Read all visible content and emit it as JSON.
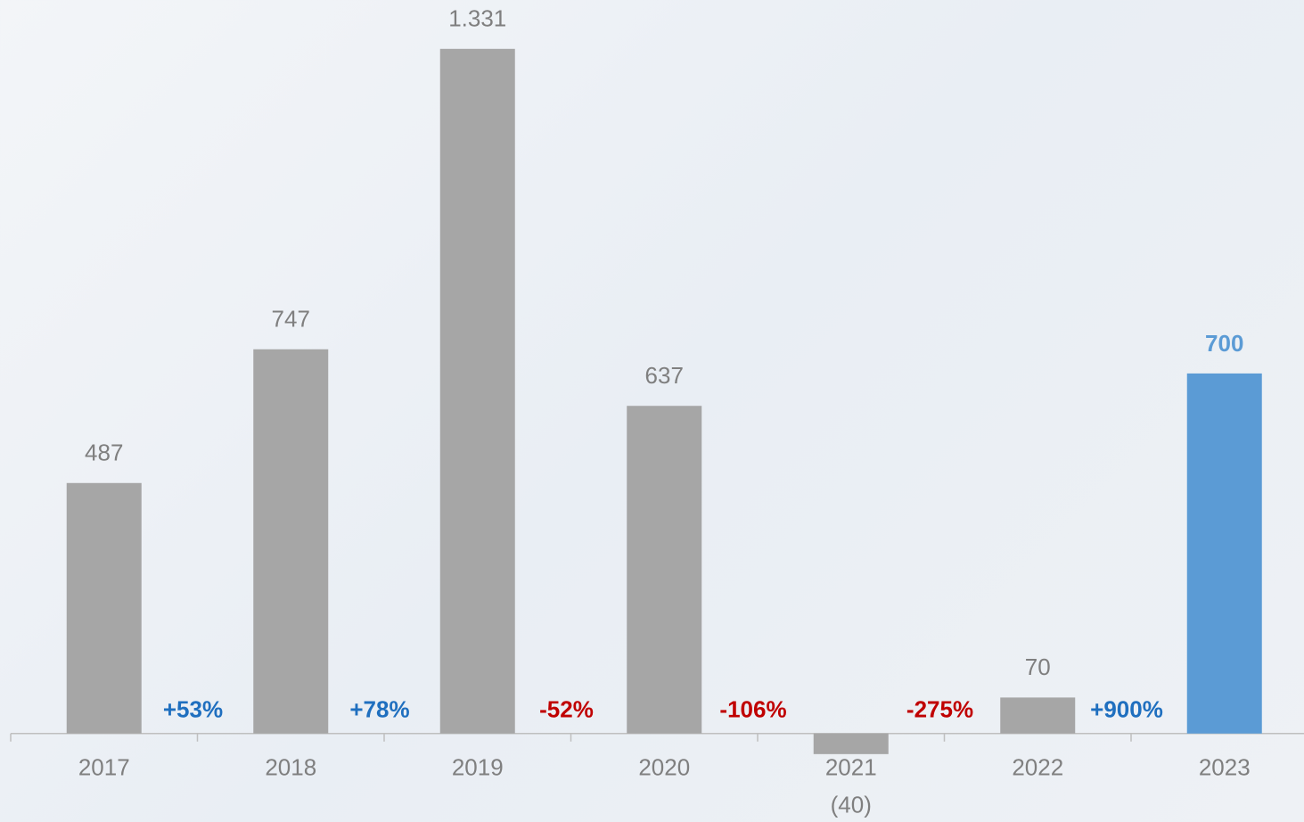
{
  "chart_data": {
    "type": "bar",
    "categories": [
      "2017",
      "2018",
      "2019",
      "2020",
      "2021",
      "2022",
      "2023"
    ],
    "values": [
      487,
      747,
      1331,
      637,
      -40,
      70,
      700
    ],
    "value_labels": [
      "487",
      "747",
      "1.331",
      "637",
      "(40)",
      "70",
      "700"
    ],
    "colors": [
      "#a6a6a6",
      "#a6a6a6",
      "#a6a6a6",
      "#a6a6a6",
      "#a6a6a6",
      "#a6a6a6",
      "#5b9bd5"
    ],
    "value_label_colors": [
      "#7f7f7f",
      "#7f7f7f",
      "#7f7f7f",
      "#7f7f7f",
      "#7f7f7f",
      "#7f7f7f",
      "#5b9bd5"
    ],
    "annotations": [
      "+53%",
      "+78%",
      "-52%",
      "-106%",
      "-275%",
      "+900%"
    ],
    "annotation_colors": [
      "#1f6fbf",
      "#1f6fbf",
      "#c00000",
      "#c00000",
      "#c00000",
      "#1f6fbf"
    ],
    "ylim": [
      -172,
      1426
    ]
  }
}
